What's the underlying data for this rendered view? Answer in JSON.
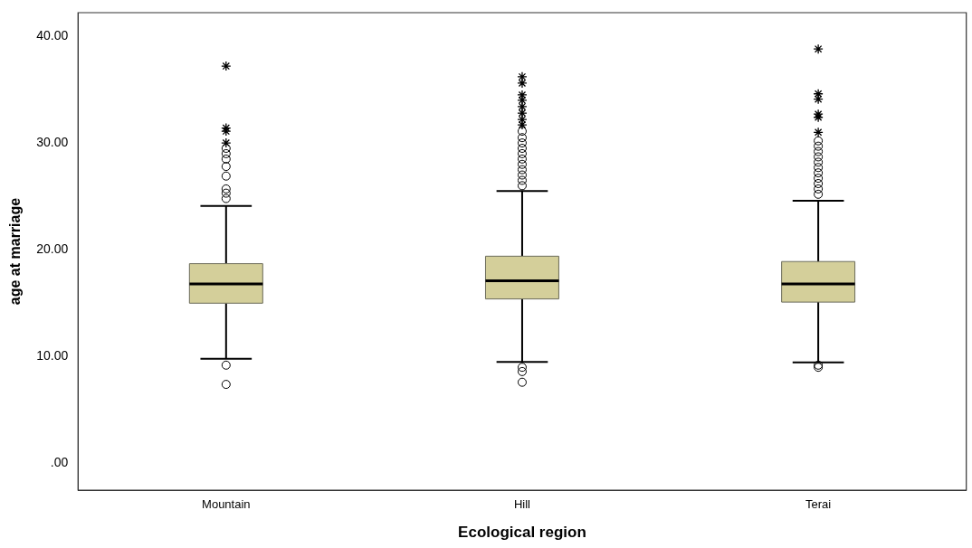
{
  "chart_data": {
    "type": "box",
    "xlabel": "Ecological region",
    "ylabel": "age at marriage",
    "categories": [
      "Mountain",
      "Hill",
      "Terai"
    ],
    "color": "#d4cf9a",
    "ylim": [
      -2.5,
      42.2
    ],
    "yticks": [
      {
        "value": 0,
        "label": ".00"
      },
      {
        "value": 10,
        "label": "10.00"
      },
      {
        "value": 20,
        "label": "20.00"
      },
      {
        "value": 30,
        "label": "30.00"
      },
      {
        "value": 40,
        "label": "40.00"
      }
    ],
    "grid": false,
    "legend": false,
    "boxes": [
      {
        "low": 9.8,
        "q1": 15.0,
        "median": 16.8,
        "q3": 18.7,
        "high": 24.1,
        "outliers": [
          9.2,
          7.4,
          37.2,
          31.4,
          31.1,
          30.0,
          29.5,
          29.0,
          28.5,
          27.8,
          26.9,
          25.7,
          25.3,
          24.8
        ]
      },
      {
        "low": 9.5,
        "q1": 15.4,
        "median": 17.1,
        "q3": 19.4,
        "high": 25.5,
        "outliers": [
          9.0,
          8.6,
          7.6,
          36.2,
          35.6,
          34.5,
          34.0,
          33.4,
          32.8,
          32.2,
          31.7,
          31.1,
          30.5,
          30.0,
          29.5,
          29.0,
          28.5,
          28.0,
          27.5,
          27.0,
          26.5,
          26.0
        ]
      },
      {
        "low": 9.45,
        "q1": 15.1,
        "median": 16.8,
        "q3": 18.9,
        "high": 24.6,
        "outliers": [
          9.2,
          9.0,
          38.8,
          34.6,
          34.1,
          32.7,
          32.4,
          31.0,
          30.2,
          29.7,
          29.2,
          28.7,
          28.2,
          27.7,
          27.2,
          26.7,
          26.2,
          25.7,
          25.2
        ]
      }
    ]
  }
}
